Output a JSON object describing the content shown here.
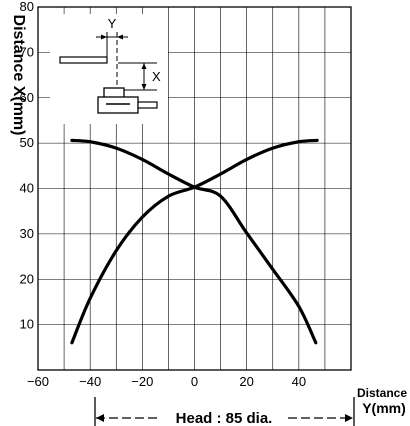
{
  "chart_data": {
    "type": "line",
    "ylabel": "Distance X(mm)",
    "xlabel_line1": "Distance",
    "xlabel_line2": "Y(mm)",
    "xlim": [
      -60,
      60
    ],
    "ylim": [
      0,
      80
    ],
    "xticks": [
      -60,
      -40,
      -20,
      0,
      20,
      40
    ],
    "xtick_labels": [
      "−60",
      "−40",
      "−20",
      "0",
      "20",
      "40"
    ],
    "yticks": [
      10,
      20,
      30,
      40,
      50,
      60,
      70,
      80
    ],
    "grid": true,
    "series": [
      {
        "x": [
          -47,
          -40,
          -30,
          -20,
          -10,
          0,
          10,
          20,
          30,
          40,
          47
        ],
        "y": [
          6,
          15.8,
          26.3,
          33.7,
          38.3,
          40.3,
          43.2,
          46.4,
          48.9,
          50.3,
          50.6
        ]
      },
      {
        "x": [
          -47,
          -40,
          -30,
          -20,
          -10,
          0,
          10,
          20,
          30,
          40,
          46.5
        ],
        "y": [
          50.6,
          50.3,
          48.9,
          46.4,
          43.2,
          40.3,
          38.3,
          30.2,
          22.2,
          14,
          6
        ]
      }
    ],
    "annotation": {
      "head_label": "Head : 85 dia.",
      "head_range": [
        -42.5,
        42.5
      ]
    }
  },
  "diagram": {
    "y_label": "Y",
    "x_label": "X"
  }
}
